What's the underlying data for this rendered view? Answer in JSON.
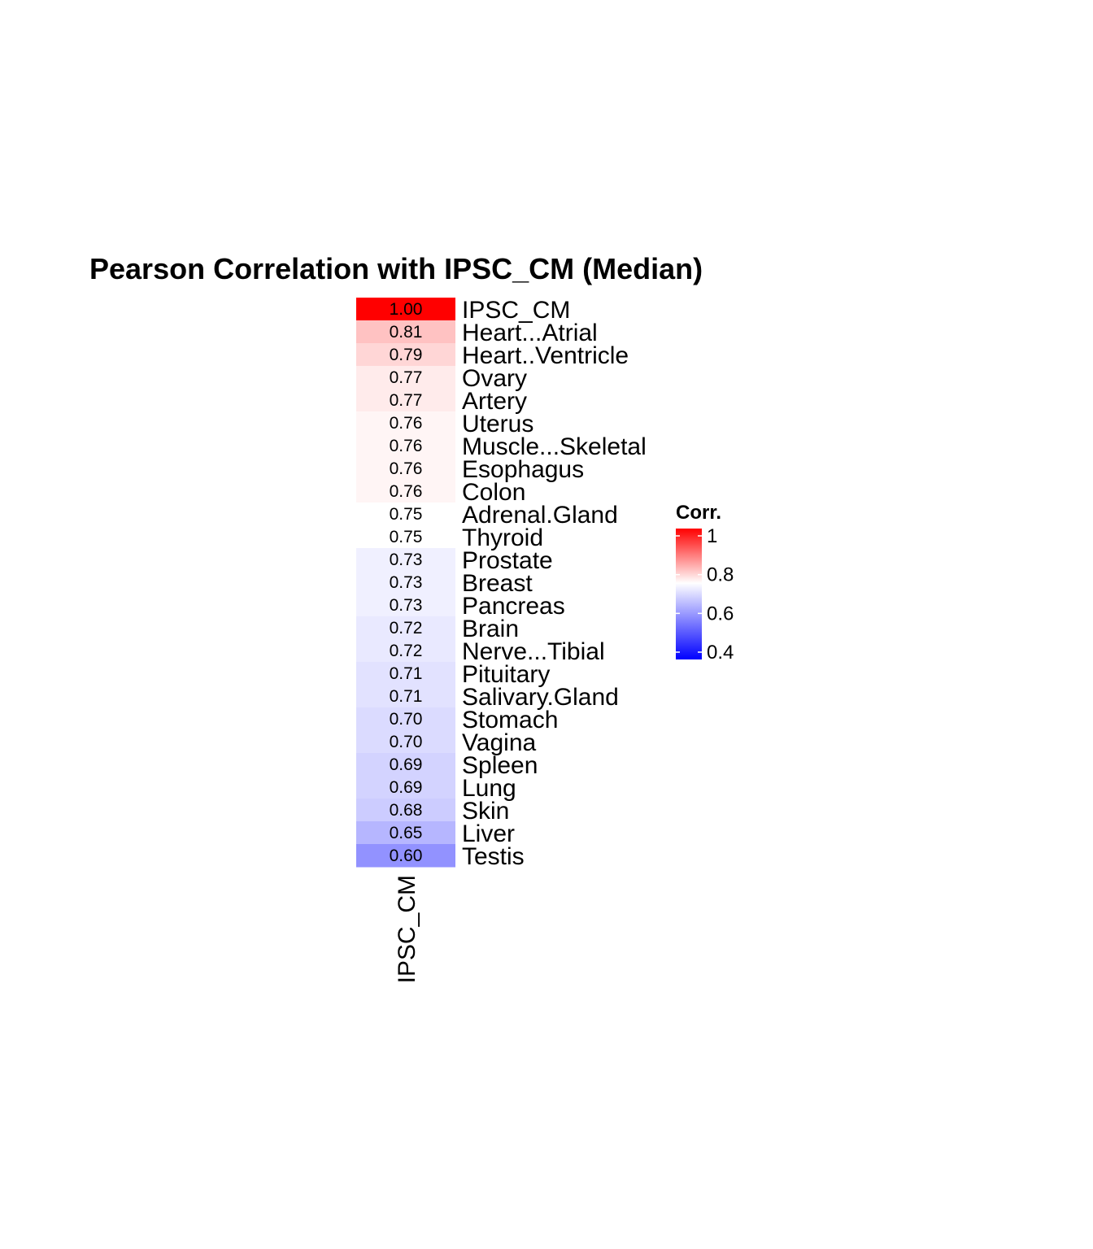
{
  "chart_data": {
    "type": "heatmap",
    "title": "Pearson Correlation with IPSC_CM (Median)",
    "columns": [
      "IPSC_CM"
    ],
    "rows": [
      "IPSC_CM",
      "Heart...Atrial",
      "Heart..Ventricle",
      "Ovary",
      "Artery",
      "Uterus",
      "Muscle...Skeletal",
      "Esophagus",
      "Colon",
      "Adrenal.Gland",
      "Thyroid",
      "Prostate",
      "Breast",
      "Pancreas",
      "Brain",
      "Nerve...Tibial",
      "Pituitary",
      "Salivary.Gland",
      "Stomach",
      "Vagina",
      "Spleen",
      "Lung",
      "Skin",
      "Liver",
      "Testis"
    ],
    "values": [
      1.0,
      0.81,
      0.79,
      0.77,
      0.77,
      0.76,
      0.76,
      0.76,
      0.76,
      0.75,
      0.75,
      0.73,
      0.73,
      0.73,
      0.72,
      0.72,
      0.71,
      0.71,
      0.7,
      0.7,
      0.69,
      0.69,
      0.68,
      0.65,
      0.6
    ],
    "value_labels": [
      "1.00",
      "0.81",
      "0.79",
      "0.77",
      "0.77",
      "0.76",
      "0.76",
      "0.76",
      "0.76",
      "0.75",
      "0.75",
      "0.73",
      "0.73",
      "0.73",
      "0.72",
      "0.72",
      "0.71",
      "0.71",
      "0.70",
      "0.70",
      "0.69",
      "0.69",
      "0.68",
      "0.65",
      "0.60"
    ],
    "legend": {
      "title": "Corr.",
      "range": [
        0.4,
        1.0
      ],
      "midpoint": 0.75,
      "ticks": [
        1,
        0.8,
        0.6,
        0.4
      ],
      "tick_labels": [
        "1",
        "0.8",
        "0.6",
        "0.4"
      ],
      "placement": "right"
    },
    "colors": {
      "low": "#0000ff",
      "mid": "#ffffff",
      "high": "#ff0000"
    },
    "grid": false
  }
}
